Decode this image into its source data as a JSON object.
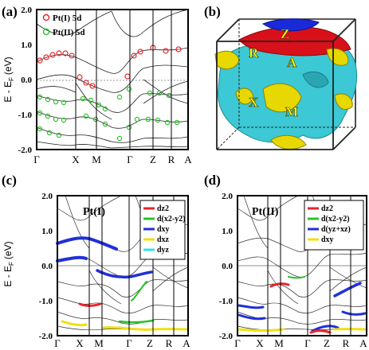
{
  "figure": {
    "panels": {
      "a": {
        "label": "(a)",
        "legend": [
          "Pt(I) 5d",
          "Pt(II) 5d"
        ],
        "legend_colors": [
          "#e8242a",
          "#2bc42b"
        ]
      },
      "b": {
        "label": "(b)",
        "bz_labels": [
          "Z",
          "R",
          "A",
          "X",
          "M"
        ],
        "colors": {
          "sheet_a": "#3cc8d4",
          "sheet_b": "#e6d800",
          "sheet_c": "#d8101a",
          "sheet_d": "#1a2ad8"
        }
      },
      "c": {
        "label": "(c)",
        "site": "Pt(I)",
        "legend": [
          "dz2",
          "d(x2-y2)",
          "dxy",
          "dxz",
          "dyz"
        ],
        "legend_colors": [
          "#e8242a",
          "#28c428",
          "#2030d8",
          "#f0e010",
          "#30e0f0"
        ]
      },
      "d": {
        "label": "(d)",
        "site": "Pt(II)",
        "legend": [
          "dz2",
          "d(x2-y2)",
          "d(yz+xz)",
          "dxy"
        ],
        "legend_colors": [
          "#e8242a",
          "#28c428",
          "#2030d8",
          "#f0e010"
        ]
      }
    },
    "y_axis_label": "E - E",
    "y_axis_sub": "F",
    "y_axis_unit": "(eV)",
    "y_ticks": [
      "2.0",
      "1.0",
      "0.0",
      "-1.0",
      "-2.0"
    ],
    "k_labels": [
      "Γ",
      "X",
      "M",
      "Γ",
      "Z",
      "R",
      "A"
    ]
  },
  "chart_data": [
    {
      "type": "line",
      "panel": "a",
      "ylim": [
        -2.0,
        2.0
      ],
      "x_ticks": [
        "Γ",
        "X",
        "M",
        "Γ",
        "Z",
        "R",
        "A"
      ],
      "series": [
        {
          "name": "Pt(I) 5d",
          "marker": "open-circle",
          "color": "#e8242a"
        },
        {
          "name": "Pt(II) 5d",
          "marker": "open-circle",
          "color": "#2bc42b"
        }
      ]
    },
    {
      "type": "line",
      "panel": "c",
      "ylim": [
        -2.0,
        2.0
      ],
      "x_ticks": [
        "Γ",
        "X",
        "M",
        "Γ",
        "Z",
        "R",
        "A"
      ],
      "series": [
        {
          "name": "dz2",
          "color": "#e8242a"
        },
        {
          "name": "d(x2-y2)",
          "color": "#28c428"
        },
        {
          "name": "dxy",
          "color": "#2030d8"
        },
        {
          "name": "dxz",
          "color": "#f0e010"
        },
        {
          "name": "dyz",
          "color": "#30e0f0"
        }
      ]
    },
    {
      "type": "line",
      "panel": "d",
      "ylim": [
        -2.0,
        2.0
      ],
      "x_ticks": [
        "Γ",
        "X",
        "M",
        "Γ",
        "Z",
        "R",
        "A"
      ],
      "series": [
        {
          "name": "dz2",
          "color": "#e8242a"
        },
        {
          "name": "d(x2-y2)",
          "color": "#28c428"
        },
        {
          "name": "d(yz+xz)",
          "color": "#2030d8"
        },
        {
          "name": "dxy",
          "color": "#f0e010"
        }
      ]
    }
  ]
}
